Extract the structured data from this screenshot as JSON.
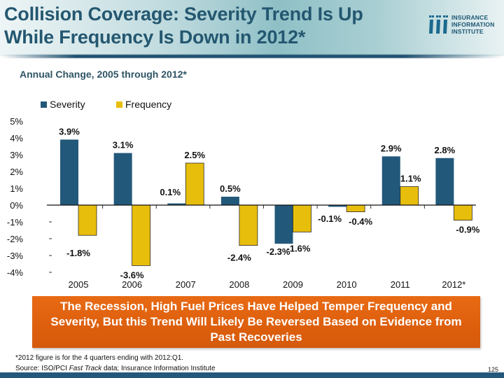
{
  "header": {
    "title_line1": "Collision Coverage: Severity Trend Is Up",
    "title_line2": "While Frequency Is Down in 2012*",
    "logo": {
      "icon": "iii-logo-icon",
      "line1": "INSURANCE",
      "line2": "INFORMATION",
      "line3": "INSTITUTE"
    }
  },
  "subtitle": "Annual Change, 2005 through 2012*",
  "colors": {
    "severity": "#22587a",
    "frequency": "#e8be0c",
    "title": "#245770",
    "callout": "#e0630f",
    "footer_bar": "#23587a"
  },
  "chart_data": {
    "type": "bar",
    "title": "Annual Change, 2005 through 2012*",
    "xlabel": "",
    "ylabel": "",
    "categories": [
      "2005",
      "2006",
      "2007",
      "2008",
      "2009",
      "2010",
      "2011",
      "2012*"
    ],
    "series": [
      {
        "name": "Severity",
        "values": [
          3.9,
          3.1,
          0.1,
          0.5,
          -2.3,
          -0.1,
          2.9,
          2.8
        ],
        "labels": [
          "3.9%",
          "3.1%",
          "0.1%",
          "0.5%",
          "-2.3%",
          "-0.1%",
          "2.9%",
          "2.8%"
        ]
      },
      {
        "name": "Frequency",
        "values": [
          -1.8,
          -3.6,
          2.5,
          -2.4,
          -1.6,
          -0.4,
          1.1,
          -0.9
        ],
        "labels": [
          "-1.8%",
          "-3.6%",
          "2.5%",
          "-2.4%",
          "-1.6%",
          "-0.4%",
          "1.1%",
          "-0.9%"
        ]
      }
    ],
    "yticks": [
      "5%",
      "4%",
      "3%",
      "2%",
      "1%",
      "0%",
      "-1%",
      "-2%",
      "-3%",
      "-4%"
    ],
    "ytick_values": [
      5,
      4,
      3,
      2,
      1,
      0,
      -1,
      -2,
      -3,
      -4
    ],
    "ylim": [
      -4,
      5
    ],
    "grid": false,
    "legend_position": "top-left"
  },
  "callout": {
    "text": "The Recession, High Fuel Prices Have Helped Temper Frequency and Severity, But this Trend Will Likely Be Reversed Based on Evidence from Past Recoveries"
  },
  "footnote": {
    "line1": "*2012 figure is for the 4 quarters ending with 2012:Q1.",
    "source_prefix": "Source: ISO/PCI ",
    "source_italic": "Fast Track",
    "source_suffix": " data; Insurance Information Institute"
  },
  "page_number": "125"
}
